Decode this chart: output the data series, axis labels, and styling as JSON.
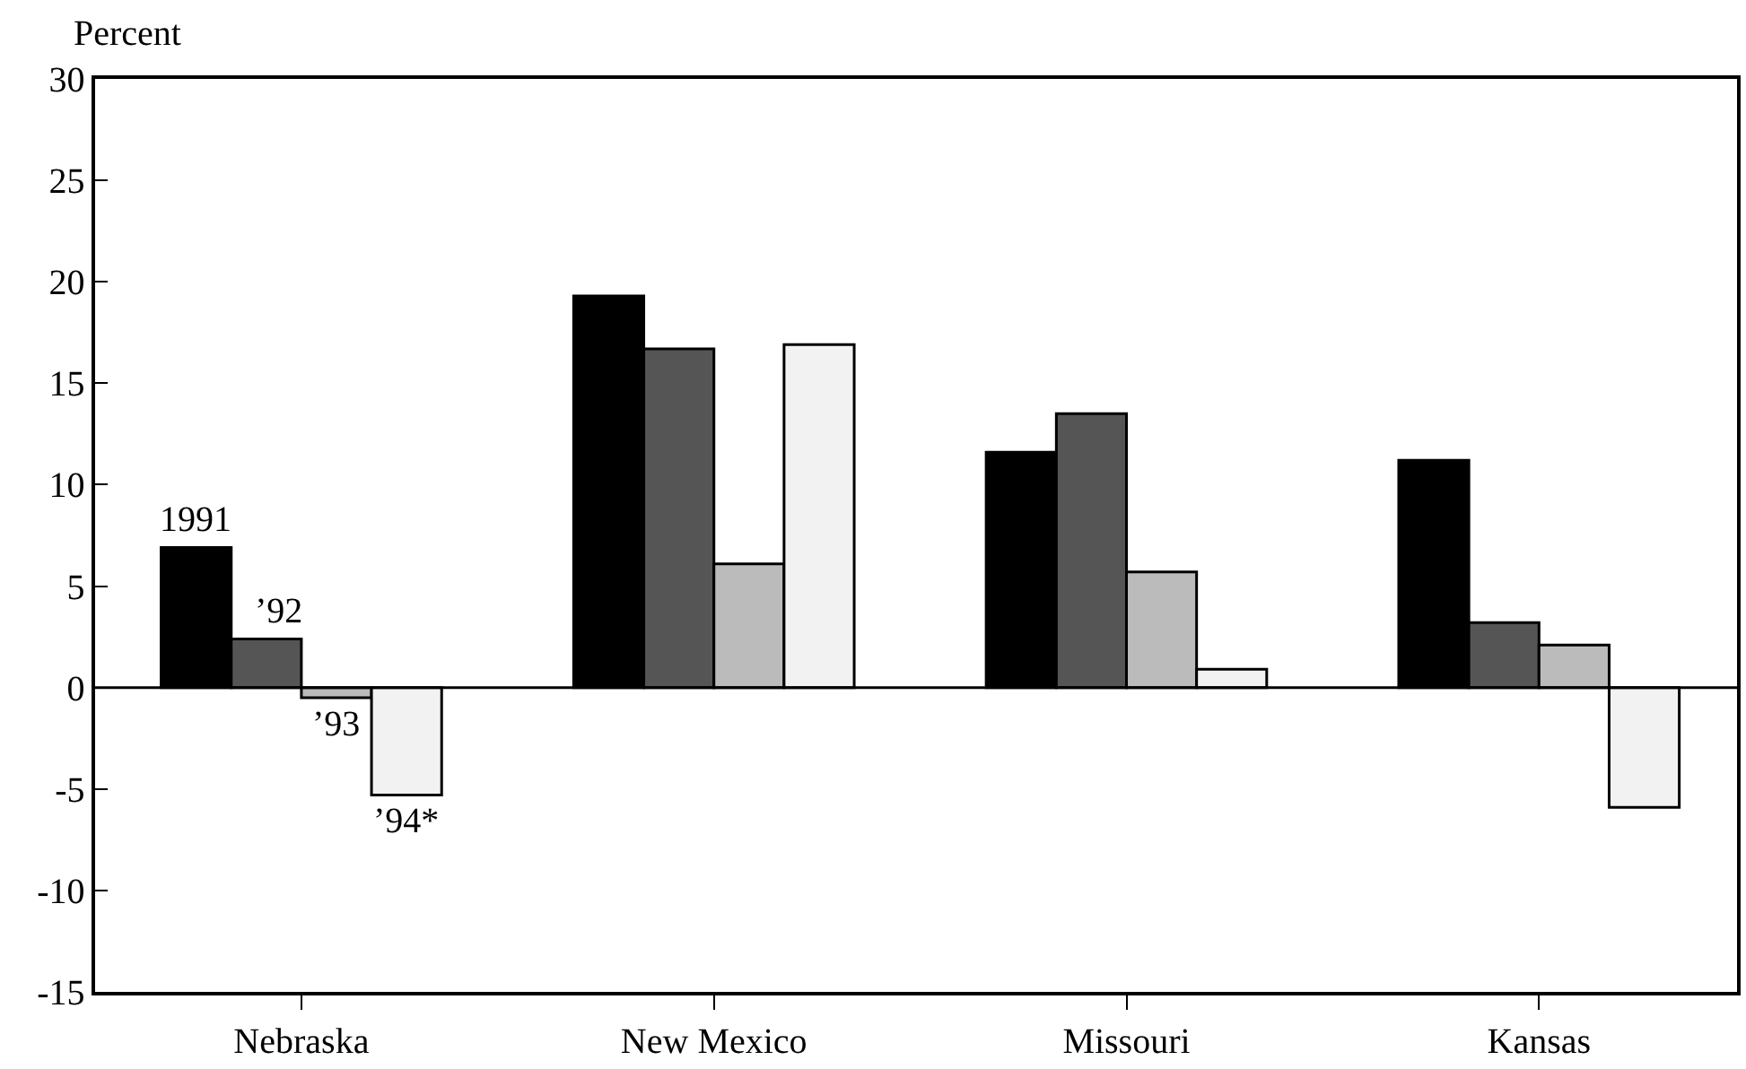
{
  "chart_data": {
    "type": "bar",
    "ylabel": "Percent",
    "categories": [
      "Nebraska",
      "New Mexico",
      "Missouri",
      "Kansas"
    ],
    "series": [
      {
        "name": "1991",
        "color": "#000000",
        "values": [
          6.9,
          19.3,
          11.6,
          11.2
        ]
      },
      {
        "name": "’92",
        "color": "#555555",
        "values": [
          2.4,
          16.7,
          13.5,
          3.2
        ]
      },
      {
        "name": "’93",
        "color": "#bbbbbb",
        "values": [
          -0.5,
          6.1,
          5.7,
          2.1
        ]
      },
      {
        "name": "’94*",
        "color": "#f2f2f2",
        "values": [
          -5.3,
          16.9,
          0.9,
          -5.9
        ]
      }
    ],
    "ylim": [
      -15,
      30
    ],
    "yticks": [
      -15,
      -10,
      -5,
      0,
      5,
      10,
      15,
      20,
      25,
      30
    ],
    "grid": false,
    "ref_lines": [
      {
        "axis": "y",
        "value": 0,
        "color": "#000000"
      }
    ],
    "legend": false
  }
}
